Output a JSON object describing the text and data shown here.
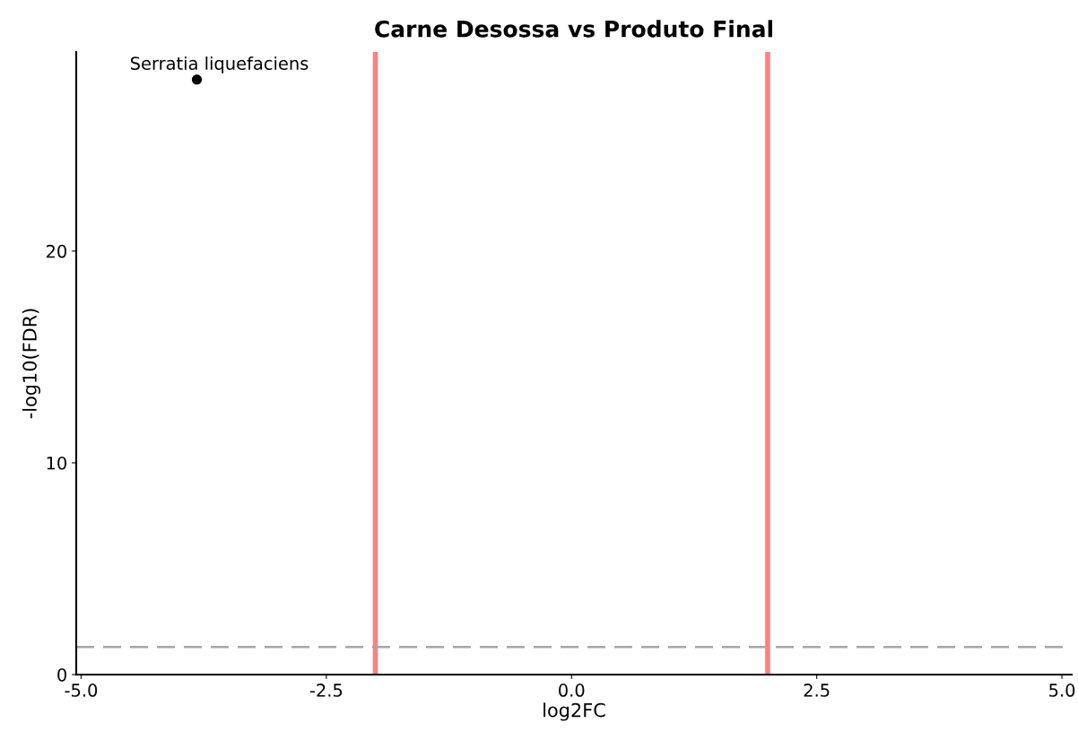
{
  "chart_data": {
    "type": "scatter",
    "title": "Carne Desossa vs Produto Final",
    "xlabel": "log2FC",
    "ylabel": "-log10(FDR)",
    "x": [
      -3.82
    ],
    "series": [
      {
        "color": "#000000",
        "values": [
          28.1
        ]
      }
    ],
    "marker": "circle",
    "grid": false,
    "legend": false,
    "xlim": [
      -5.05,
      5.1
    ],
    "xticks": [
      {
        "value": -5,
        "label": "-5.0"
      },
      {
        "value": -2.5,
        "label": "-2.5"
      },
      {
        "value": 0,
        "label": "0.0"
      },
      {
        "value": 2.5,
        "label": "2.5"
      },
      {
        "value": 5,
        "label": "5.0"
      }
    ],
    "ylim": [
      0,
      29.4
    ],
    "yticks": [
      0,
      10,
      20
    ],
    "ref_lines": [
      {
        "axis": "x",
        "value": -2,
        "color": "#ff7f7f",
        "line_style": "solid"
      },
      {
        "axis": "x",
        "value": 2,
        "color": "#ff7f7f",
        "line_style": "solid"
      },
      {
        "axis": "y",
        "value": 1.3,
        "color": "#a6a6a6",
        "line_style": "dashed"
      }
    ],
    "annotations": [
      {
        "text": "Serratia liquefaciens",
        "x": -3.82,
        "y": 28.1
      }
    ]
  }
}
